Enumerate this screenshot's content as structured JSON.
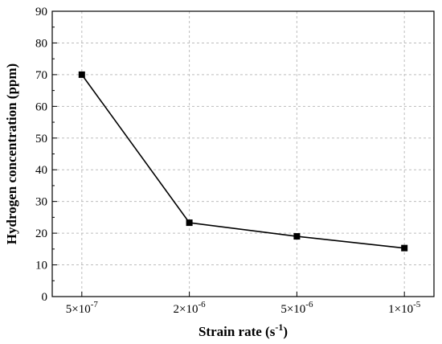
{
  "chart_data": {
    "type": "line",
    "xlabel": "Strain rate (s",
    "xlabel_sup": "-1",
    "xlabel_close": ")",
    "ylabel": "Hydrogen concentration (ppm)",
    "categories": [
      {
        "mantissa": "5×10",
        "exp": "-7"
      },
      {
        "mantissa": "2×10",
        "exp": "-6"
      },
      {
        "mantissa": "5×10",
        "exp": "-6"
      },
      {
        "mantissa": "1×10",
        "exp": "-5"
      }
    ],
    "values": [
      70,
      23.3,
      19,
      15.3
    ],
    "ylim": [
      0,
      90
    ],
    "yticks": [
      0,
      10,
      20,
      30,
      40,
      50,
      60,
      70,
      80,
      90
    ],
    "grid": true,
    "marker": "square",
    "line_color": "#000000"
  }
}
